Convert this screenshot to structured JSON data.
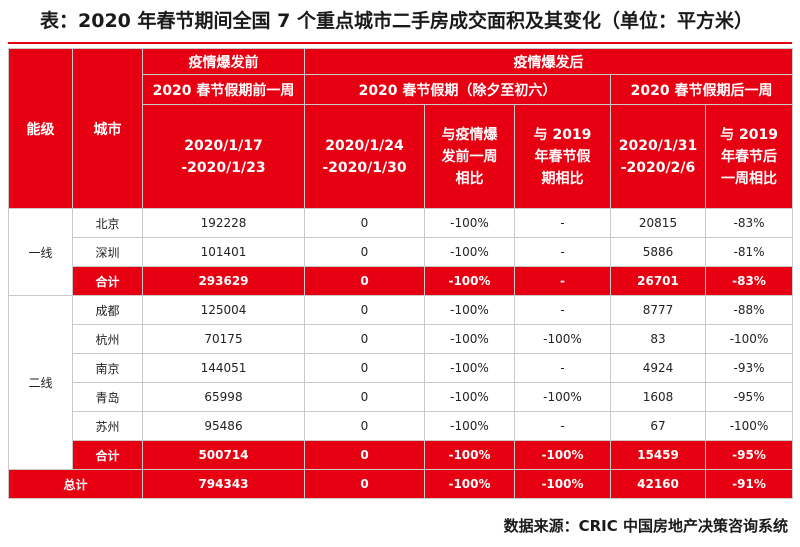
{
  "title": "表：2020 年春节期间全国 7 个重点城市二手房成交面积及其变化（单位：平方米）",
  "header": {
    "tier": "能级",
    "city": "城市",
    "pre_outbreak": "疫情爆发前",
    "post_outbreak": "疫情爆发后",
    "pre_week": "2020 春节假期前一周",
    "holiday": "2020 春节假期（除夕至初六）",
    "post_week": "2020 春节假期后一周",
    "pre_week_dates": [
      "2020/1/17",
      "-2020/1/23"
    ],
    "holiday_dates": [
      "2020/1/24",
      "-2020/1/30"
    ],
    "holiday_vs_pre": [
      "与疫情爆",
      "发前一周",
      "相比"
    ],
    "holiday_vs_2019": [
      "与 2019",
      "年春节假",
      "期相比"
    ],
    "post_dates": [
      "2020/1/31",
      "-2020/2/6"
    ],
    "post_vs_2019": [
      "与 2019",
      "年春节后",
      "一周相比"
    ]
  },
  "groups": [
    {
      "tier": "一线",
      "rows": [
        {
          "city": "北京",
          "pre": "192228",
          "holiday": "0",
          "vs_pre": "-100%",
          "vs_2019": "-",
          "post": "20815",
          "post_vs_2019": "-83%"
        },
        {
          "city": "深圳",
          "pre": "101401",
          "holiday": "0",
          "vs_pre": "-100%",
          "vs_2019": "-",
          "post": "5886",
          "post_vs_2019": "-81%"
        }
      ],
      "subtotal": {
        "city": "合计",
        "pre": "293629",
        "holiday": "0",
        "vs_pre": "-100%",
        "vs_2019": "-",
        "post": "26701",
        "post_vs_2019": "-83%"
      }
    },
    {
      "tier": "二线",
      "rows": [
        {
          "city": "成都",
          "pre": "125004",
          "holiday": "0",
          "vs_pre": "-100%",
          "vs_2019": "-",
          "post": "8777",
          "post_vs_2019": "-88%"
        },
        {
          "city": "杭州",
          "pre": "70175",
          "holiday": "0",
          "vs_pre": "-100%",
          "vs_2019": "-100%",
          "post": "83",
          "post_vs_2019": "-100%"
        },
        {
          "city": "南京",
          "pre": "144051",
          "holiday": "0",
          "vs_pre": "-100%",
          "vs_2019": "-",
          "post": "4924",
          "post_vs_2019": "-93%"
        },
        {
          "city": "青岛",
          "pre": "65998",
          "holiday": "0",
          "vs_pre": "-100%",
          "vs_2019": "-100%",
          "post": "1608",
          "post_vs_2019": "-95%"
        },
        {
          "city": "苏州",
          "pre": "95486",
          "holiday": "0",
          "vs_pre": "-100%",
          "vs_2019": "-",
          "post": "67",
          "post_vs_2019": "-100%"
        }
      ],
      "subtotal": {
        "city": "合计",
        "pre": "500714",
        "holiday": "0",
        "vs_pre": "-100%",
        "vs_2019": "-100%",
        "post": "15459",
        "post_vs_2019": "-95%"
      }
    }
  ],
  "total": {
    "label": "总计",
    "pre": "794343",
    "holiday": "0",
    "vs_pre": "-100%",
    "vs_2019": "-100%",
    "post": "42160",
    "post_vs_2019": "-91%"
  },
  "source": "数据来源：CRIC 中国房地产决策咨询系统",
  "colors": {
    "accent": "#e60012"
  }
}
